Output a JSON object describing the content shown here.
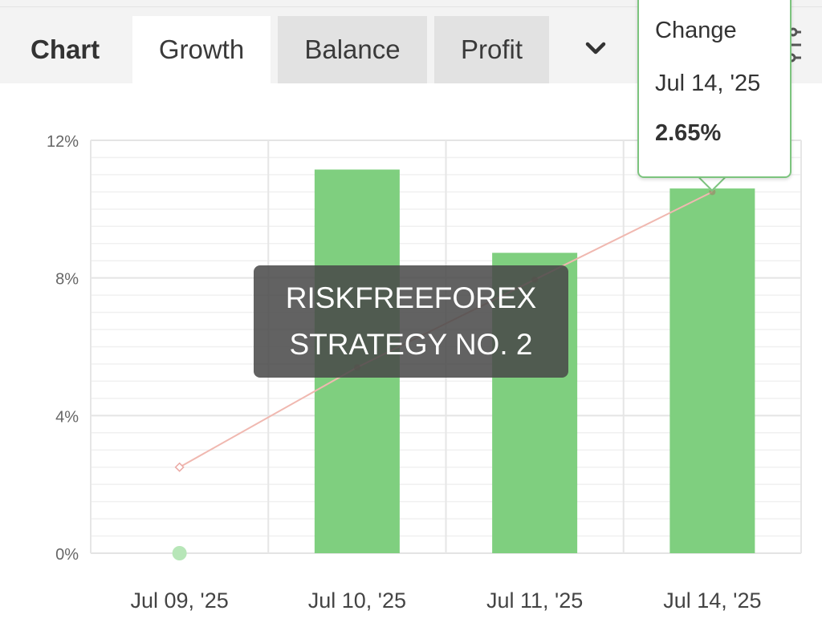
{
  "header": {
    "chart_label": "Chart",
    "tabs": [
      {
        "label": "Growth",
        "active": true
      },
      {
        "label": "Balance",
        "active": false
      },
      {
        "label": "Profit",
        "active": false
      }
    ],
    "more_icon": "chevron-down-icon",
    "filter_icon": "filter-icon"
  },
  "tooltip": {
    "label": "Change",
    "date": "Jul 14, '25",
    "value": "2.65%"
  },
  "watermark": {
    "line1": "RISKFREEFOREX",
    "line2": "STRATEGY  NO. 2"
  },
  "colors": {
    "bar": "#7fcf7f",
    "line": "#f0b8b0",
    "accent": "#7cc47e"
  },
  "chart_data": {
    "type": "bar",
    "categories": [
      "Jul 09, '25",
      "Jul 10, '25",
      "Jul 11, '25",
      "Jul 14, '25"
    ],
    "series": [
      {
        "type": "bar",
        "values": [
          0,
          11.15,
          8.73,
          10.6
        ]
      },
      {
        "type": "line",
        "values": [
          2.5,
          5.4,
          7.95,
          10.5
        ]
      }
    ],
    "y_ticks": [
      "0%",
      "4%",
      "8%",
      "12%"
    ],
    "ylim": [
      0,
      12
    ],
    "grid": true,
    "highlighted_category": "Jul 14, '25"
  }
}
